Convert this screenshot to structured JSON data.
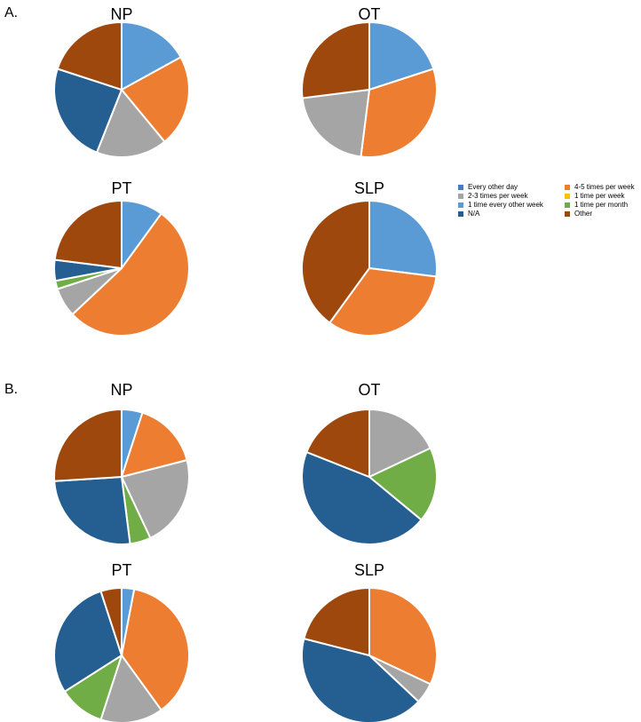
{
  "panels": [
    {
      "label": "A."
    },
    {
      "label": "B."
    }
  ],
  "legend": [
    {
      "label": "Every other day",
      "color": "#4a78c2"
    },
    {
      "label": "4-5 times per week",
      "color": "#ed7d31"
    },
    {
      "label": "2-3 times per week",
      "color": "#a5a5a5"
    },
    {
      "label": "1 time per week",
      "color": "#ffc000"
    },
    {
      "label": "1 time every other week",
      "color": "#5b9bd5"
    },
    {
      "label": "1 time per month",
      "color": "#70ad47"
    },
    {
      "label": "N/A",
      "color": "#255e91"
    },
    {
      "label": "Other",
      "color": "#9e480e"
    }
  ],
  "chart_data": [
    {
      "type": "pie",
      "panel": "A",
      "title": "NP",
      "categories": [
        "1 time every other week",
        "4-5 times per week",
        "2-3 times per week",
        "N/A",
        "Other"
      ],
      "values": [
        17,
        22,
        17,
        24,
        20
      ],
      "colors": [
        "#5b9bd5",
        "#ed7d31",
        "#a5a5a5",
        "#255e91",
        "#9e480e"
      ]
    },
    {
      "type": "pie",
      "panel": "A",
      "title": "OT",
      "categories": [
        "1 time every other week",
        "4-5 times per week",
        "2-3 times per week",
        "Other"
      ],
      "values": [
        20,
        32,
        21,
        27
      ],
      "colors": [
        "#5b9bd5",
        "#ed7d31",
        "#a5a5a5",
        "#9e480e"
      ]
    },
    {
      "type": "pie",
      "panel": "A",
      "title": "PT",
      "categories": [
        "1 time every other week",
        "4-5 times per week",
        "2-3 times per week",
        "1 time per month",
        "N/A",
        "Other"
      ],
      "values": [
        10,
        53,
        7,
        2,
        5,
        23
      ],
      "colors": [
        "#5b9bd5",
        "#ed7d31",
        "#a5a5a5",
        "#70ad47",
        "#255e91",
        "#9e480e"
      ]
    },
    {
      "type": "pie",
      "panel": "A",
      "title": "SLP",
      "categories": [
        "1 time every other week",
        "4-5 times per week",
        "Other"
      ],
      "values": [
        27,
        33,
        40
      ],
      "colors": [
        "#5b9bd5",
        "#ed7d31",
        "#9e480e"
      ]
    },
    {
      "type": "pie",
      "panel": "B",
      "title": "NP",
      "categories": [
        "1 time every other week",
        "4-5 times per week",
        "2-3 times per week",
        "1 time per month",
        "N/A",
        "Other"
      ],
      "values": [
        5,
        16,
        22,
        5,
        26,
        26
      ],
      "colors": [
        "#5b9bd5",
        "#ed7d31",
        "#a5a5a5",
        "#70ad47",
        "#255e91",
        "#9e480e"
      ]
    },
    {
      "type": "pie",
      "panel": "B",
      "title": "OT",
      "categories": [
        "2-3 times per week",
        "1 time per month",
        "N/A",
        "Other"
      ],
      "values": [
        18,
        18,
        45,
        19
      ],
      "colors": [
        "#a5a5a5",
        "#70ad47",
        "#255e91",
        "#9e480e"
      ]
    },
    {
      "type": "pie",
      "panel": "B",
      "title": "PT",
      "categories": [
        "1 time every other week",
        "4-5 times per week",
        "2-3 times per week",
        "1 time per month",
        "N/A",
        "Other"
      ],
      "values": [
        3,
        37,
        15,
        11,
        29,
        5
      ],
      "colors": [
        "#5b9bd5",
        "#ed7d31",
        "#a5a5a5",
        "#70ad47",
        "#255e91",
        "#9e480e"
      ]
    },
    {
      "type": "pie",
      "panel": "B",
      "title": "SLP",
      "categories": [
        "4-5 times per week",
        "2-3 times per week",
        "N/A",
        "Other"
      ],
      "values": [
        32,
        5,
        42,
        21
      ],
      "colors": [
        "#ed7d31",
        "#a5a5a5",
        "#255e91",
        "#9e480e"
      ]
    }
  ]
}
